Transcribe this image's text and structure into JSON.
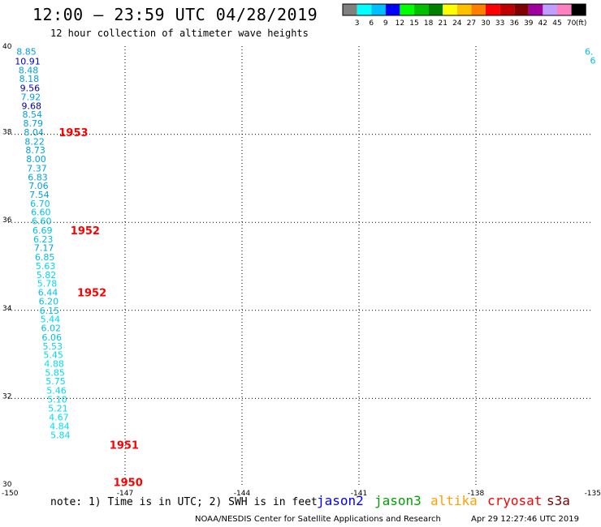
{
  "header": {
    "title": "12:00 – 23:59 UTC 04/28/2019",
    "subtitle": "12 hour collection of altimeter wave heights"
  },
  "colorbar": {
    "unit_label": "(ft)",
    "colors": [
      "#808080",
      "#00ffff",
      "#00bfff",
      "#0000ff",
      "#00ff00",
      "#00c000",
      "#008000",
      "#ffff00",
      "#ffc000",
      "#ff8000",
      "#ff0000",
      "#c00000",
      "#800000",
      "#a000a0",
      "#c0a0ff",
      "#ff80c0",
      "#000000"
    ],
    "labels": [
      "3",
      "6",
      "9",
      "12",
      "15",
      "18",
      "21",
      "24",
      "27",
      "30",
      "33",
      "36",
      "39",
      "42",
      "45",
      "70"
    ]
  },
  "chart_data": {
    "type": "scatter",
    "xlim": [
      -150,
      -135
    ],
    "ylim": [
      30,
      40
    ],
    "x_ticks": [
      "-150",
      "-147",
      "-144",
      "-141",
      "-138",
      "-135"
    ],
    "y_ticks": [
      "40",
      "38",
      "36",
      "34",
      "32",
      "30"
    ],
    "grid": true,
    "points": [
      {
        "lon": -149.53,
        "lat": 39.88,
        "swh": "8.85",
        "color": "#00a0e0"
      },
      {
        "lon": -149.5,
        "lat": 39.66,
        "swh": "10.91",
        "color": "#0000c0"
      },
      {
        "lon": -149.48,
        "lat": 39.46,
        "swh": "8.48",
        "color": "#00a0e0"
      },
      {
        "lon": -149.46,
        "lat": 39.26,
        "swh": "8.18",
        "color": "#00a0e0"
      },
      {
        "lon": -149.44,
        "lat": 39.05,
        "swh": "9.56",
        "color": "#0000c0"
      },
      {
        "lon": -149.42,
        "lat": 38.85,
        "swh": "7.92",
        "color": "#00a0e0"
      },
      {
        "lon": -149.4,
        "lat": 38.65,
        "swh": "9.68",
        "color": "#0000c0"
      },
      {
        "lon": -149.38,
        "lat": 38.45,
        "swh": "8.54",
        "color": "#00a0e0"
      },
      {
        "lon": -149.36,
        "lat": 38.25,
        "swh": "8.79",
        "color": "#00a0e0"
      },
      {
        "lon": -149.34,
        "lat": 38.05,
        "swh": "8.04",
        "color": "#00a0e0"
      },
      {
        "lon": -149.32,
        "lat": 37.84,
        "swh": "8.22",
        "color": "#00a0e0"
      },
      {
        "lon": -149.3,
        "lat": 37.64,
        "swh": "8.73",
        "color": "#00a0e0"
      },
      {
        "lon": -149.28,
        "lat": 37.44,
        "swh": "8.00",
        "color": "#00a0e0"
      },
      {
        "lon": -149.26,
        "lat": 37.23,
        "swh": "7.37",
        "color": "#00a0e0"
      },
      {
        "lon": -149.24,
        "lat": 37.03,
        "swh": "6.83",
        "color": "#00a0e0"
      },
      {
        "lon": -149.22,
        "lat": 36.83,
        "swh": "7.06",
        "color": "#00a0e0"
      },
      {
        "lon": -149.2,
        "lat": 36.63,
        "swh": "7.54",
        "color": "#00a0e0"
      },
      {
        "lon": -149.18,
        "lat": 36.43,
        "swh": "6.70",
        "color": "#00c0e8"
      },
      {
        "lon": -149.16,
        "lat": 36.23,
        "swh": "6.60",
        "color": "#00c0e8"
      },
      {
        "lon": -149.14,
        "lat": 36.03,
        "swh": "6.60",
        "color": "#00c0e8"
      },
      {
        "lon": -149.12,
        "lat": 35.82,
        "swh": "6.69",
        "color": "#00c0e8"
      },
      {
        "lon": -149.1,
        "lat": 35.62,
        "swh": "6.23",
        "color": "#00c0e8"
      },
      {
        "lon": -149.08,
        "lat": 35.42,
        "swh": "7.17",
        "color": "#00a0e0"
      },
      {
        "lon": -149.06,
        "lat": 35.21,
        "swh": "6.85",
        "color": "#00c0e8"
      },
      {
        "lon": -149.04,
        "lat": 35.01,
        "swh": "5.63",
        "color": "#00d8f0"
      },
      {
        "lon": -149.02,
        "lat": 34.81,
        "swh": "5.82",
        "color": "#00d8f0"
      },
      {
        "lon": -149.0,
        "lat": 34.61,
        "swh": "5.78",
        "color": "#00d8f0"
      },
      {
        "lon": -148.98,
        "lat": 34.41,
        "swh": "6.44",
        "color": "#00c0e8"
      },
      {
        "lon": -148.96,
        "lat": 34.21,
        "swh": "6.20",
        "color": "#00c0e8"
      },
      {
        "lon": -148.94,
        "lat": 34.0,
        "swh": "6.15",
        "color": "#00c0e8"
      },
      {
        "lon": -148.92,
        "lat": 33.8,
        "swh": "5.44",
        "color": "#00d8f0"
      },
      {
        "lon": -148.9,
        "lat": 33.6,
        "swh": "6.02",
        "color": "#00c0e8"
      },
      {
        "lon": -148.88,
        "lat": 33.39,
        "swh": "6.06",
        "color": "#00c0e8"
      },
      {
        "lon": -148.86,
        "lat": 33.19,
        "swh": "5.53",
        "color": "#00d8f0"
      },
      {
        "lon": -148.84,
        "lat": 32.99,
        "swh": "5.45",
        "color": "#00d8f0"
      },
      {
        "lon": -148.82,
        "lat": 32.79,
        "swh": "4.88",
        "color": "#00e0f0"
      },
      {
        "lon": -148.8,
        "lat": 32.59,
        "swh": "5.85",
        "color": "#00d8f0"
      },
      {
        "lon": -148.78,
        "lat": 32.39,
        "swh": "5.75",
        "color": "#00d8f0"
      },
      {
        "lon": -148.76,
        "lat": 32.18,
        "swh": "5.46",
        "color": "#00d8f0"
      },
      {
        "lon": -148.74,
        "lat": 31.98,
        "swh": "5.10",
        "color": "#00d8f0"
      },
      {
        "lon": -148.72,
        "lat": 31.78,
        "swh": "5.21",
        "color": "#00d8f0"
      },
      {
        "lon": -148.7,
        "lat": 31.57,
        "swh": "4.67",
        "color": "#00e0f0"
      },
      {
        "lon": -148.68,
        "lat": 31.37,
        "swh": "4.84",
        "color": "#00e0f0"
      },
      {
        "lon": -148.66,
        "lat": 31.17,
        "swh": "5.84",
        "color": "#00d8f0"
      },
      {
        "lon": -135.1,
        "lat": 39.88,
        "swh": "6.",
        "color": "#00c0e8"
      },
      {
        "lon": -135.0,
        "lat": 39.68,
        "swh": "6",
        "color": "#00c0e8"
      }
    ],
    "time_labels": [
      {
        "lon": -148.7,
        "lat": 38.05,
        "text": "1953"
      },
      {
        "lon": -148.4,
        "lat": 35.82,
        "text": "1952"
      },
      {
        "lon": -148.23,
        "lat": 34.41,
        "text": "1952"
      },
      {
        "lon": -147.4,
        "lat": 30.95,
        "text": "1951"
      },
      {
        "lon": -147.3,
        "lat": 30.1,
        "text": "1950"
      }
    ]
  },
  "footer": {
    "note": "note: 1) Time is in UTC; 2) SWH is in feet",
    "legend": [
      {
        "name": "jason2",
        "color": "#0000ff"
      },
      {
        "name": "jason3",
        "color": "#00a000"
      },
      {
        "name": "altika",
        "color": "#ffa000"
      },
      {
        "name": "cryosat",
        "color": "#ff0000"
      },
      {
        "name": "s3a",
        "color": "#800000"
      }
    ],
    "credit": "NOAA/NESDIS Center for Satellite Applications and Research",
    "timestamp": "Apr 29 12:27:46 UTC 2019"
  }
}
